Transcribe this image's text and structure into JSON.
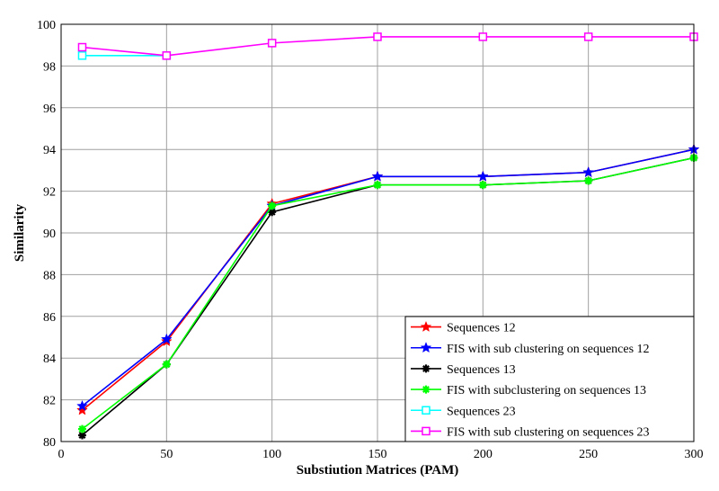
{
  "chart_data": {
    "type": "line",
    "title": "",
    "xlabel": "Substiution Matrices (PAM)",
    "ylabel": "Similarity",
    "xlim": [
      0,
      300
    ],
    "ylim": [
      80,
      100
    ],
    "xticks": [
      0,
      50,
      100,
      150,
      200,
      250,
      300
    ],
    "yticks": [
      80,
      82,
      84,
      86,
      88,
      90,
      92,
      94,
      96,
      98,
      100
    ],
    "grid": true,
    "legend_position": "bottom-right",
    "series": [
      {
        "name": "Sequences 12",
        "color": "#ff0000",
        "marker": "star",
        "x": [
          10,
          50,
          100,
          150,
          200,
          250,
          300
        ],
        "values": [
          81.5,
          84.8,
          91.4,
          92.7,
          92.7,
          92.9,
          94.0
        ]
      },
      {
        "name": "FIS with sub clustering on sequences 12",
        "color": "#0000ff",
        "marker": "star",
        "x": [
          10,
          50,
          100,
          150,
          200,
          250,
          300
        ],
        "values": [
          81.7,
          84.9,
          91.3,
          92.7,
          92.7,
          92.9,
          94.0
        ]
      },
      {
        "name": "Sequences 13",
        "color": "#000000",
        "marker": "asterisk",
        "x": [
          10,
          50,
          100,
          150,
          200,
          250,
          300
        ],
        "values": [
          80.3,
          83.7,
          91.0,
          92.3,
          92.3,
          92.5,
          93.6
        ]
      },
      {
        "name": "FIS with subclustering on sequences 13",
        "color": "#00ff00",
        "marker": "asterisk",
        "x": [
          10,
          50,
          100,
          150,
          200,
          250,
          300
        ],
        "values": [
          80.6,
          83.7,
          91.3,
          92.3,
          92.3,
          92.5,
          93.6
        ]
      },
      {
        "name": "Sequences 23",
        "color": "#00ffff",
        "marker": "square",
        "x": [
          10,
          50
        ],
        "values": [
          98.5,
          98.5
        ]
      },
      {
        "name": "FIS with sub clustering on sequences 23",
        "color": "#ff00ff",
        "marker": "square",
        "x": [
          10,
          50,
          100,
          150,
          200,
          250,
          300
        ],
        "values": [
          98.9,
          98.5,
          99.1,
          99.4,
          99.4,
          99.4,
          99.4
        ]
      }
    ]
  }
}
